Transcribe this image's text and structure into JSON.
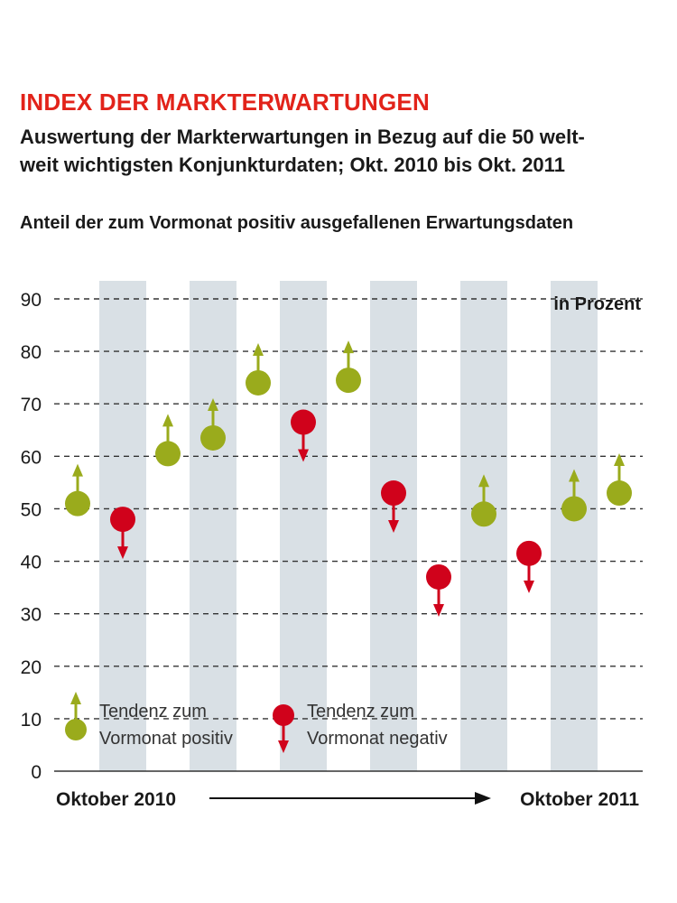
{
  "title": "INDEX DER MARKTERWARTUNGEN",
  "subtitle_line1": "Auswertung der Markterwartungen in Bezug auf die 50 welt-",
  "subtitle_line2": "weit wichtigsten Konjunkturdaten; Okt. 2010 bis Okt. 2011",
  "measure_label": "Anteil der zum Vormonat positiv ausgefallenen Erwartungsdaten",
  "colors": {
    "positive": "#9aab1c",
    "negative": "#d0021b",
    "title": "#e2231a",
    "band": "#d9e0e5",
    "grid": "#333333"
  },
  "chart_data": {
    "type": "scatter",
    "title": "INDEX DER MARKTERWARTUNGEN",
    "ylabel": "in Prozent",
    "ylim": [
      0,
      90
    ],
    "yticks": [
      0,
      10,
      20,
      30,
      40,
      50,
      60,
      70,
      80,
      90
    ],
    "x_start_label": "Oktober 2010",
    "x_end_label": "Oktober 2011",
    "series": [
      {
        "name": "Anteil positiv ausgefallener Erwartungsdaten",
        "values": [
          51,
          48,
          60.5,
          63.5,
          74,
          66.5,
          74.5,
          53,
          37,
          49,
          41.5,
          50,
          53
        ],
        "trend": [
          "up",
          "down",
          "up",
          "up",
          "up",
          "down",
          "up",
          "down",
          "down",
          "up",
          "down",
          "up",
          "up"
        ]
      }
    ],
    "legend": [
      {
        "trend": "up",
        "line1": "Tendenz zum",
        "line2": "Vormonat positiv"
      },
      {
        "trend": "down",
        "line1": "Tendenz zum",
        "line2": "Vormonat negativ"
      }
    ]
  }
}
